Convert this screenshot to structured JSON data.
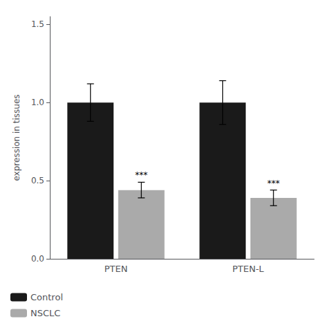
{
  "chart_data": {
    "type": "bar",
    "categories": [
      "PTEN",
      "PTEN-L"
    ],
    "series": [
      {
        "name": "Control",
        "color": "#1a1a1a",
        "values": [
          1.0,
          1.0
        ],
        "errors": [
          0.12,
          0.14
        ]
      },
      {
        "name": "NSCLC",
        "color": "#aaaaaa",
        "values": [
          0.44,
          0.39
        ],
        "errors": [
          0.05,
          0.05
        ],
        "annotations": [
          "***",
          "***"
        ]
      }
    ],
    "ylabel": "expression in tissues",
    "ylim": [
      0,
      1.55
    ],
    "yticks": [
      {
        "value": 0,
        "label": "0.0"
      },
      0.5,
      {
        "value": 1,
        "label": "1.0"
      },
      1.5
    ],
    "grid": false,
    "legend": "lower left"
  }
}
